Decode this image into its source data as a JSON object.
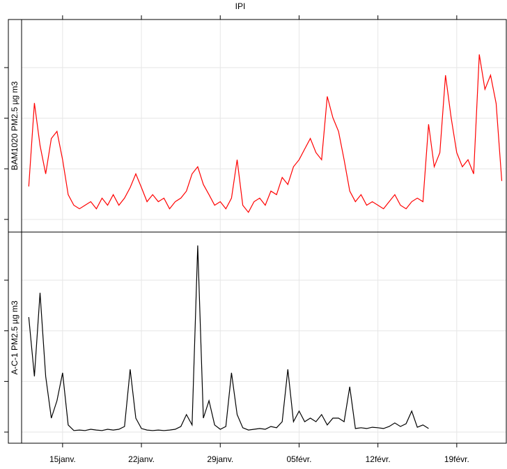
{
  "chart_data": [
    {
      "type": "line",
      "title": "IPI",
      "ylabel": "BAM1020  PM2.5  µg  m3",
      "color": "#ff0000",
      "grid": true,
      "xlim": [
        11.36,
        54.4
      ],
      "ylim": [
        -2.5,
        39.5
      ],
      "yticks": [
        0,
        10,
        20,
        30
      ],
      "xticks": [
        {
          "value": 15,
          "label": "15janv."
        },
        {
          "value": 22,
          "label": "22janv."
        },
        {
          "value": 29,
          "label": "29janv."
        },
        {
          "value": 36,
          "label": "05févr."
        },
        {
          "value": 43,
          "label": "12févr."
        },
        {
          "value": 50,
          "label": "19févr."
        }
      ],
      "x": [
        12,
        12.5,
        13,
        13.5,
        14,
        14.5,
        15,
        15.5,
        16,
        16.5,
        17,
        17.5,
        18,
        18.5,
        19,
        19.5,
        20,
        20.5,
        21,
        21.5,
        22,
        22.5,
        23,
        23.5,
        24,
        24.5,
        25,
        25.5,
        26,
        26.5,
        27,
        27.5,
        28,
        28.5,
        29,
        29.5,
        30,
        30.5,
        31,
        31.5,
        32,
        32.5,
        33,
        33.5,
        34,
        34.5,
        35,
        35.5,
        36,
        36.5,
        37,
        37.5,
        38,
        38.5,
        39,
        39.5,
        40,
        40.5,
        41,
        41.5,
        42,
        42.5,
        43,
        43.5,
        44,
        44.5,
        45,
        45.5,
        46,
        46.5,
        47,
        47.5,
        48,
        48.5,
        49,
        49.5,
        50,
        50.5,
        51,
        51.5,
        52,
        52.5,
        53,
        53.5,
        54
      ],
      "values": [
        6.5,
        23,
        14.6,
        9,
        16,
        17.4,
        11.8,
        4.9,
        2.8,
        2.1,
        2.8,
        3.5,
        2.1,
        4.2,
        2.8,
        4.9,
        2.8,
        4.2,
        6.3,
        9,
        6.3,
        3.5,
        4.9,
        3.5,
        4.2,
        2.1,
        3.5,
        4.2,
        5.6,
        9,
        10.4,
        6.9,
        4.9,
        2.8,
        3.5,
        2.1,
        4.2,
        11.8,
        2.8,
        1.4,
        3.5,
        4.2,
        2.8,
        5.6,
        4.9,
        8.3,
        6.9,
        10.4,
        11.8,
        13.9,
        16,
        13.2,
        11.8,
        24.3,
        20.1,
        17.4,
        11.8,
        5.6,
        3.5,
        4.9,
        2.8,
        3.5,
        2.8,
        2.1,
        3.5,
        4.9,
        2.8,
        2.1,
        3.5,
        4.2,
        3.5,
        18.8,
        10.4,
        13.2,
        28.5,
        20.1,
        13.2,
        10.4,
        11.8,
        9,
        32.6,
        25.7,
        28.5,
        22.9,
        7.6
      ]
    },
    {
      "type": "line",
      "ylabel": "A-C-1  PM2.5  µg  m3",
      "color": "#000000",
      "grid": true,
      "xlim": [
        11.36,
        54.4
      ],
      "ylim": [
        -4.4,
        79
      ],
      "yticks": [
        0,
        20,
        40,
        60
      ],
      "xticks": [
        {
          "value": 15,
          "label": "15janv."
        },
        {
          "value": 22,
          "label": "22janv."
        },
        {
          "value": 29,
          "label": "29janv."
        },
        {
          "value": 36,
          "label": "05févr."
        },
        {
          "value": 43,
          "label": "12févr."
        },
        {
          "value": 50,
          "label": "19févr."
        }
      ],
      "x": [
        12,
        12.5,
        13,
        13.5,
        14,
        14.5,
        15,
        15.5,
        16,
        16.5,
        17,
        17.5,
        18,
        18.5,
        19,
        19.5,
        20,
        20.5,
        21,
        21.5,
        22,
        22.5,
        23,
        23.5,
        24,
        24.5,
        25,
        25.5,
        26,
        26.5,
        27,
        27.5,
        28,
        28.5,
        29,
        29.5,
        30,
        30.5,
        31,
        31.5,
        32,
        32.5,
        33,
        33.5,
        34,
        34.5,
        35,
        35.5,
        36,
        36.5,
        37,
        37.5,
        38,
        38.5,
        39,
        39.5,
        40,
        40.5,
        41,
        41.5,
        42,
        42.5,
        43,
        43.5,
        44,
        44.5,
        45,
        45.5,
        46,
        46.5,
        47,
        47.5
      ],
      "values": [
        45.4,
        22,
        55,
        22,
        5.5,
        12.4,
        23.4,
        2.8,
        0.6,
        0.8,
        0.6,
        1.1,
        0.8,
        0.6,
        1.1,
        0.8,
        1.1,
        2.2,
        24.8,
        5.5,
        1.4,
        0.8,
        0.6,
        0.8,
        0.6,
        0.8,
        1.1,
        2.2,
        6.9,
        2.8,
        73.7,
        5.5,
        12.4,
        2.8,
        1.1,
        2.2,
        23.4,
        6.9,
        1.7,
        0.8,
        1.1,
        1.4,
        1.1,
        2.2,
        1.7,
        4.1,
        24.8,
        4.1,
        8.3,
        4.1,
        5.5,
        4.1,
        6.9,
        2.8,
        5.5,
        5.5,
        4.1,
        17.9,
        1.4,
        1.7,
        1.4,
        1.9,
        1.7,
        1.4,
        2.2,
        3.6,
        2.2,
        3.3,
        8.3,
        1.9,
        2.8,
        1.4
      ]
    }
  ]
}
